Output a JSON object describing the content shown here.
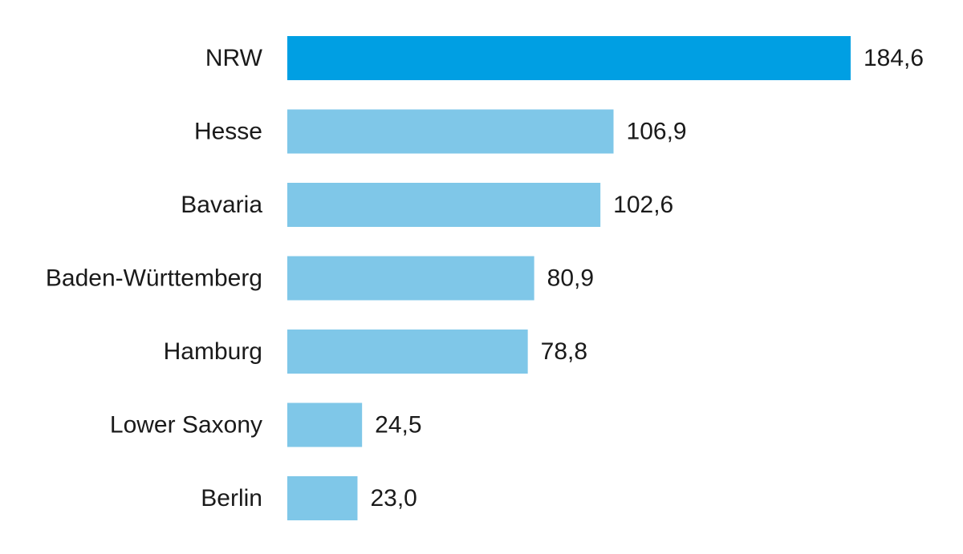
{
  "chart_data": {
    "type": "bar",
    "orientation": "horizontal",
    "categories": [
      "NRW",
      "Hesse",
      "Bavaria",
      "Baden-Württemberg",
      "Hamburg",
      "Lower Saxony",
      "Berlin"
    ],
    "values": [
      184.6,
      106.9,
      102.6,
      80.9,
      78.8,
      24.5,
      23.0
    ],
    "value_labels": [
      "184,6",
      "106,9",
      "102,6",
      "80,9",
      "78,8",
      "24,5",
      "23,0"
    ],
    "highlight_index": 0,
    "xlim": [
      0,
      184.6
    ],
    "grid": false,
    "legend": "none",
    "colors": {
      "highlight": "#009fe3",
      "default": "#7fc7e8",
      "text": "#1a1a1a"
    }
  }
}
